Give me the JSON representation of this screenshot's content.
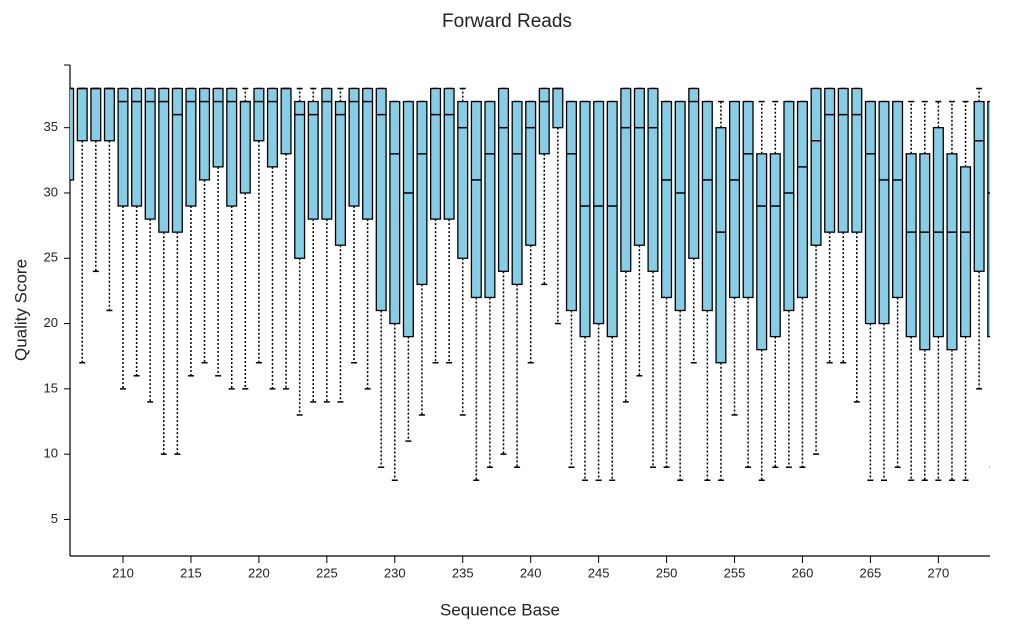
{
  "chart_data": {
    "type": "box",
    "title": "Forward Reads",
    "x_label": "Sequence Base",
    "y_label": "Quality Score",
    "color": "#87cde6",
    "xlim": [
      206.1,
      273.8
    ],
    "ylim": [
      2.2,
      39.8
    ],
    "xticks": [
      210,
      215,
      220,
      225,
      230,
      235,
      240,
      245,
      250,
      255,
      260,
      265,
      270
    ],
    "yticks": [
      5,
      10,
      15,
      20,
      25,
      30,
      35
    ],
    "x": [
      206,
      207,
      208,
      209,
      210,
      211,
      212,
      213,
      214,
      215,
      216,
      217,
      218,
      219,
      220,
      221,
      222,
      223,
      224,
      225,
      226,
      227,
      228,
      229,
      230,
      231,
      232,
      233,
      234,
      235,
      236,
      237,
      238,
      239,
      240,
      241,
      242,
      243,
      244,
      245,
      246,
      247,
      248,
      249,
      250,
      251,
      252,
      253,
      254,
      255,
      256,
      257,
      258,
      259,
      260,
      261,
      262,
      263,
      264,
      265,
      266,
      267,
      268,
      269,
      270,
      271,
      272,
      273,
      274
    ],
    "whisker_low": [
      31,
      17,
      24,
      21,
      15,
      16,
      14,
      10,
      10,
      16,
      17,
      16,
      15,
      15,
      17,
      15,
      15,
      13,
      14,
      14,
      14,
      17,
      15,
      9,
      8,
      11,
      13,
      17,
      17,
      13,
      8,
      9,
      10,
      9,
      17,
      23,
      20,
      9,
      8,
      8,
      8,
      14,
      16,
      9,
      9,
      8,
      17,
      8,
      8,
      13,
      9,
      8,
      9,
      9,
      9,
      10,
      17,
      17,
      14,
      8,
      8,
      9,
      8,
      8,
      8,
      8,
      8,
      15,
      9
    ],
    "q1": [
      31,
      34,
      34,
      34,
      29,
      29,
      28,
      27,
      27,
      29,
      31,
      32,
      29,
      30,
      34,
      32,
      33,
      25,
      28,
      28,
      26,
      29,
      28,
      21,
      20,
      19,
      23,
      28,
      28,
      25,
      22,
      22,
      24,
      23,
      26,
      33,
      35,
      21,
      19,
      20,
      19,
      24,
      26,
      24,
      22,
      21,
      25,
      21,
      17,
      22,
      22,
      18,
      19,
      21,
      22,
      26,
      27,
      27,
      27,
      20,
      20,
      22,
      19,
      18,
      19,
      18,
      19,
      24,
      19
    ],
    "median": [
      38,
      38,
      38,
      38,
      37,
      37,
      37,
      37,
      36,
      37,
      37,
      37,
      37,
      37,
      37,
      37,
      38,
      36,
      36,
      37,
      36,
      37,
      37,
      36,
      33,
      30,
      33,
      36,
      36,
      35,
      31,
      33,
      35,
      33,
      35,
      37,
      38,
      33,
      29,
      29,
      29,
      35,
      35,
      35,
      31,
      30,
      37,
      31,
      27,
      31,
      33,
      29,
      29,
      30,
      32,
      34,
      36,
      36,
      36,
      33,
      31,
      31,
      27,
      27,
      27,
      27,
      27,
      34,
      30
    ],
    "q3": [
      38,
      38,
      38,
      38,
      38,
      38,
      38,
      38,
      38,
      38,
      38,
      38,
      38,
      37,
      38,
      38,
      38,
      37,
      37,
      38,
      37,
      38,
      38,
      38,
      37,
      37,
      37,
      38,
      38,
      37,
      37,
      37,
      38,
      37,
      37,
      38,
      38,
      37,
      37,
      37,
      37,
      38,
      38,
      38,
      37,
      37,
      38,
      37,
      35,
      37,
      37,
      33,
      33,
      37,
      37,
      38,
      38,
      38,
      38,
      37,
      37,
      37,
      33,
      33,
      35,
      33,
      32,
      37,
      37
    ],
    "whisker_high": [
      38,
      38,
      38,
      38,
      38,
      38,
      38,
      38,
      38,
      38,
      38,
      38,
      38,
      38,
      38,
      38,
      38,
      38,
      38,
      38,
      38,
      38,
      38,
      38,
      37,
      37,
      37,
      38,
      38,
      38,
      37,
      37,
      38,
      37,
      37,
      38,
      38,
      37,
      37,
      37,
      37,
      38,
      38,
      38,
      37,
      37,
      38,
      37,
      37,
      37,
      37,
      37,
      37,
      37,
      37,
      38,
      38,
      38,
      38,
      37,
      37,
      37,
      37,
      37,
      37,
      37,
      37,
      38,
      37
    ]
  }
}
